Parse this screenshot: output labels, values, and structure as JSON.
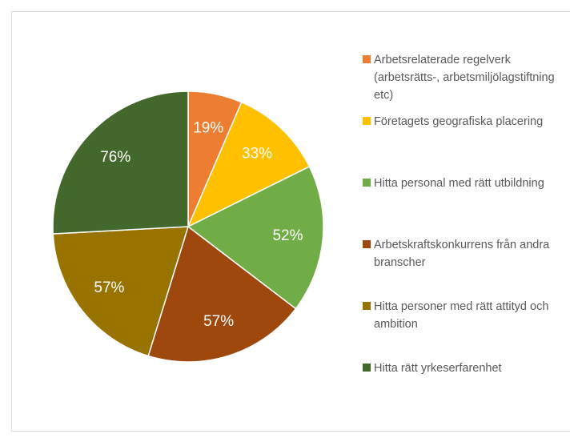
{
  "chart_data": {
    "type": "pie",
    "categories": [
      "Arbetsrelaterade regelverk (arbetsrätts-, arbetsmiljölagstiftning etc)",
      "Företagets geografiska placering",
      "Hitta personal med rätt utbildning",
      "Arbetskraftskonkurrens från andra branscher",
      "Hitta personer med rätt attityd och ambition",
      "Hitta rätt yrkeserfarenhet"
    ],
    "values": [
      19,
      33,
      52,
      57,
      57,
      76
    ],
    "value_labels": [
      "19%",
      "33%",
      "52%",
      "57%",
      "57%",
      "76%"
    ],
    "colors": [
      "#ED7D31",
      "#FFC000",
      "#70AD47",
      "#9E480E",
      "#997300",
      "#43682B"
    ],
    "legend": "right"
  }
}
